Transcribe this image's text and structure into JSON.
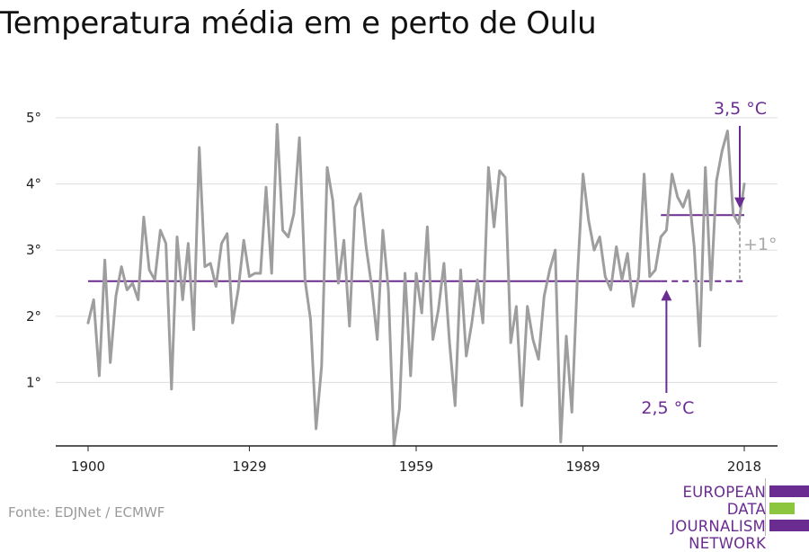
{
  "title": "Temperatura média em e perto de Oulu",
  "source": "Fonte: EDJNet / ECMWF",
  "logo": {
    "line1": "EUROPEAN",
    "line2": "DATA JOURNALISM",
    "line3": "NETWORK",
    "colors": {
      "purple": "#6a2c91",
      "green": "#8cc63f"
    }
  },
  "chart_data": {
    "type": "line",
    "title": "Temperatura média em e perto de Oulu",
    "xlabel": "",
    "ylabel": "",
    "xlim": [
      1900,
      2018
    ],
    "ylim": [
      0,
      5
    ],
    "x_ticks": [
      1900,
      1929,
      1959,
      1989,
      2018
    ],
    "x_tick_labels": [
      "1900",
      "1929",
      "1959",
      "1989",
      "2018"
    ],
    "y_ticks": [
      1,
      2,
      3,
      4,
      5
    ],
    "y_tick_labels": [
      "1°",
      "2°",
      "3°",
      "4°",
      "5°"
    ],
    "grid": "horizontal",
    "colors": {
      "series": "#9e9e9e",
      "reference": "#6a2c91",
      "difference": "#a8a8a8",
      "grid": "#dddddd",
      "axis": "#222222"
    },
    "series": [
      {
        "x": [
          1900,
          1901,
          1902,
          1903,
          1904,
          1905,
          1906,
          1907,
          1908,
          1909,
          1910,
          1911,
          1912,
          1913,
          1914,
          1915,
          1916,
          1917,
          1918,
          1919,
          1920,
          1921,
          1922,
          1923,
          1924,
          1925,
          1926,
          1927,
          1928,
          1929,
          1930,
          1931,
          1932,
          1933,
          1934,
          1935,
          1936,
          1937,
          1938,
          1939,
          1940,
          1941,
          1942,
          1943,
          1944,
          1945,
          1946,
          1947,
          1948,
          1949,
          1950,
          1951,
          1952,
          1953,
          1954,
          1955,
          1956,
          1957,
          1958,
          1959,
          1960,
          1961,
          1962,
          1963,
          1964,
          1965,
          1966,
          1967,
          1968,
          1969,
          1970,
          1971,
          1972,
          1973,
          1974,
          1975,
          1976,
          1977,
          1978,
          1979,
          1980,
          1981,
          1982,
          1983,
          1984,
          1985,
          1986,
          1987,
          1988,
          1989,
          1990,
          1991,
          1992,
          1993,
          1994,
          1995,
          1996,
          1997,
          1998,
          1999,
          2000,
          2001,
          2002,
          2003,
          2004,
          2005,
          2006,
          2007,
          2008,
          2009,
          2010,
          2011,
          2012,
          2013,
          2014,
          2015,
          2016,
          2017,
          2018
        ],
        "values": [
          1.9,
          2.25,
          1.1,
          2.85,
          1.3,
          2.3,
          2.75,
          2.4,
          2.5,
          2.25,
          3.5,
          2.7,
          2.55,
          3.3,
          3.1,
          0.9,
          3.2,
          2.25,
          3.1,
          1.8,
          4.55,
          2.75,
          2.8,
          2.45,
          3.1,
          3.25,
          1.9,
          2.4,
          3.15,
          2.6,
          2.65,
          2.65,
          3.95,
          2.65,
          4.9,
          3.3,
          3.2,
          3.55,
          4.7,
          2.55,
          1.95,
          0.3,
          1.25,
          4.25,
          3.75,
          2.5,
          3.15,
          1.85,
          3.65,
          3.85,
          3.05,
          2.45,
          1.65,
          3.3,
          2.4,
          0.05,
          0.6,
          2.65,
          1.1,
          2.65,
          2.05,
          3.35,
          1.65,
          2.1,
          2.8,
          1.6,
          0.65,
          2.7,
          1.4,
          1.9,
          2.55,
          1.9,
          4.25,
          3.35,
          4.2,
          4.1,
          1.6,
          2.15,
          0.65,
          2.15,
          1.65,
          1.35,
          2.3,
          2.7,
          3.0,
          0.1,
          1.7,
          0.55,
          2.6,
          4.15,
          3.45,
          3.0,
          3.2,
          2.6,
          2.4,
          3.05,
          2.55,
          2.95,
          2.15,
          2.6,
          4.15,
          2.6,
          2.7,
          3.2,
          3.3,
          4.15,
          3.8,
          3.65,
          3.9,
          3.05,
          1.55,
          4.25,
          2.4,
          4.05,
          4.5,
          4.8,
          3.55,
          3.4,
          4.0
        ]
      }
    ],
    "reference_lines": [
      {
        "label": "2,5 °C",
        "value": 2.53,
        "x_start": 1900,
        "x_end": 2018,
        "solid_until": 2003
      },
      {
        "label": "3,5 °C",
        "value": 3.53,
        "x_start": 2003,
        "x_end": 2018
      }
    ],
    "annotations": {
      "low_label": "2,5 °C",
      "high_label": "3,5 °C",
      "difference_label": "+1°"
    }
  }
}
